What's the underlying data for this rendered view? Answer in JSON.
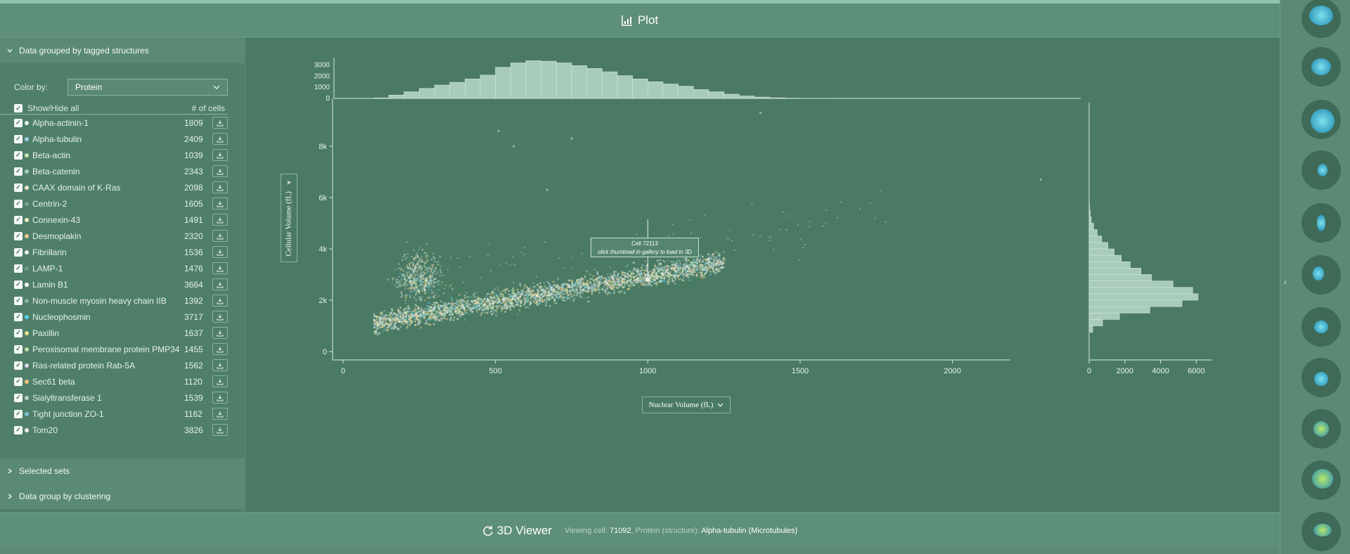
{
  "header": {
    "title": "Plot",
    "icon": "chart-icon"
  },
  "sidebar": {
    "group_title": "Data grouped by tagged structures",
    "color_by_label": "Color by:",
    "color_by_value": "Protein",
    "show_hide_label": "Show/Hide all",
    "count_header": "# of cells",
    "items": [
      {
        "label": "Alpha-actinin-1",
        "count": "1809",
        "color": "#e8f0ea"
      },
      {
        "label": "Alpha-tubulin",
        "count": "2409",
        "color": "#9ecfe8"
      },
      {
        "label": "Beta-actin",
        "count": "1039",
        "color": "#c6e6b4"
      },
      {
        "label": "Beta-catenin",
        "count": "2343",
        "color": "#a7cfb9"
      },
      {
        "label": "CAAX domain of K-Ras",
        "count": "2098",
        "color": "#f2e6d0"
      },
      {
        "label": "Centrin-2",
        "count": "1605",
        "color": "#7a9f8c"
      },
      {
        "label": "Connexin-43",
        "count": "1491",
        "color": "#f4f0c0"
      },
      {
        "label": "Desmoplakin",
        "count": "2320",
        "color": "#e9c98e"
      },
      {
        "label": "Fibrillarin",
        "count": "1536",
        "color": "#f0f4f0"
      },
      {
        "label": "LAMP-1",
        "count": "1476",
        "color": "#6f9a84"
      },
      {
        "label": "Lamin B1",
        "count": "3664",
        "color": "#ffffff"
      },
      {
        "label": "Non-muscle myosin heavy chain IIB",
        "count": "1392",
        "color": "#8db3a0"
      },
      {
        "label": "Nucleophosmin",
        "count": "3717",
        "color": "#5fd1e6"
      },
      {
        "label": "Paxillin",
        "count": "1637",
        "color": "#e6e28a"
      },
      {
        "label": "Peroxisomal membrane protein PMP34",
        "count": "1455",
        "color": "#c0e0a8"
      },
      {
        "label": "Ras-related protein Rab-5A",
        "count": "1562",
        "color": "#dcd6f0"
      },
      {
        "label": "Sec61 beta",
        "count": "1120",
        "color": "#f2c27a"
      },
      {
        "label": "Sialyltransferase 1",
        "count": "1539",
        "color": "#b8d4c6"
      },
      {
        "label": "Tight junction ZO-1",
        "count": "1162",
        "color": "#7bc0d6"
      },
      {
        "label": "Tom20",
        "count": "3826",
        "color": "#f0f0e6"
      }
    ],
    "selected_sets": "Selected sets",
    "clustering": "Data group by clustering"
  },
  "plot": {
    "y_axis_button": "Cellular Volume (fL)",
    "x_axis_button": "Nuclear Volume (fL)",
    "tooltip_title": "Cell 72113",
    "tooltip_sub": "click thumbnail in gallery to load in 3D"
  },
  "chart_data": {
    "type": "scatter",
    "xlabel": "Nuclear Volume (fL)",
    "ylabel": "Cellular Volume (fL)",
    "xlim": [
      -50,
      2400
    ],
    "ylim": [
      -300,
      9700
    ],
    "x_ticks": [
      "0",
      "500",
      "1000",
      "1500",
      "2000"
    ],
    "y_ticks": [
      "0",
      "2k",
      "4k",
      "6k",
      "8k"
    ],
    "top_hist_ticks": [
      "0",
      "1000",
      "2000",
      "3000"
    ],
    "top_hist_max": 3800,
    "top_hist_bin_width": 50,
    "top_hist_start": 100,
    "top_hist": [
      50,
      300,
      600,
      900,
      1200,
      1450,
      1750,
      2100,
      2800,
      3200,
      3400,
      3350,
      3200,
      2950,
      2700,
      2400,
      2050,
      1750,
      1500,
      1300,
      1100,
      800,
      600,
      380,
      220,
      120,
      60,
      25,
      10,
      5
    ],
    "right_hist_ticks": [
      "0",
      "2000",
      "4000",
      "6000"
    ],
    "right_hist_max": 6300,
    "right_hist_bin_width": 250,
    "right_hist_start": 750,
    "right_hist": [
      200,
      750,
      1700,
      3400,
      5200,
      6100,
      5800,
      4700,
      3500,
      2900,
      2300,
      1800,
      1400,
      1050,
      700,
      450,
      250,
      120,
      60,
      25
    ],
    "highlight_point": {
      "x": 1000,
      "y": 2800
    }
  },
  "viewer": {
    "title": "3D Viewer",
    "viewing_label": "Viewing cell: ",
    "cell_id": "71092",
    "protein_label": ", Protein (structure): ",
    "protein_value": "Alpha-tubulin (Microtubules)"
  },
  "gallery": {
    "toggle": "‹",
    "thumbs": [
      "cell-thumb-1",
      "cell-thumb-2",
      "cell-thumb-3",
      "cell-thumb-4",
      "cell-thumb-5",
      "cell-thumb-6",
      "cell-thumb-7",
      "cell-thumb-8",
      "cell-thumb-9",
      "cell-thumb-10",
      "cell-thumb-11"
    ]
  }
}
